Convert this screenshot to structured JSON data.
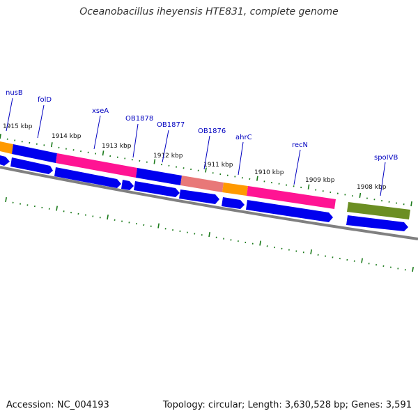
{
  "title": "Oceanobacillus iheyensis HTE831, complete genome",
  "footer": {
    "accession": "Accession: NC_004193",
    "summary": "Topology: circular; Length: 3,630,528 bp; Genes: 3,591"
  },
  "colors": {
    "backbone": "#808080",
    "tick": "#1a7a1a",
    "label_line": "#0000c0",
    "label_text": "#0000c0",
    "kbp_text": "#111111",
    "cds": "#0000ee",
    "orange": "#ff9900",
    "pink": "#ff1493",
    "salmon": "#e87878",
    "olive": "#6b8e23"
  },
  "kbp_labels": [
    "1915 kbp",
    "1914 kbp",
    "1913 kbp",
    "1912 kbp",
    "1911 kbp",
    "1910 kbp",
    "1909 kbp",
    "1908 kbp"
  ],
  "gene_labels": [
    "nusB",
    "folD",
    "xseA",
    "OB1878",
    "OB1877",
    "OB1876",
    "ahrC",
    "recN",
    "spoIVB"
  ]
}
